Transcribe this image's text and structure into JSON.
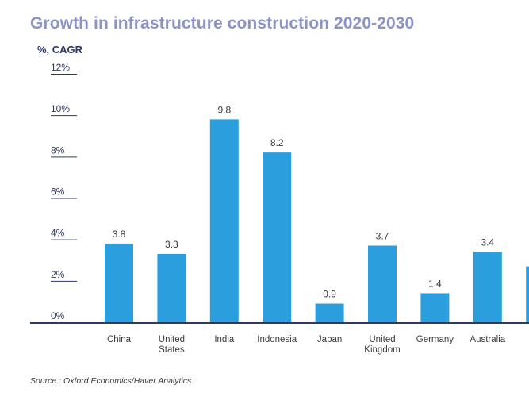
{
  "title": "Growth in infrastructure construction 2020-2030",
  "subtitle": "%, CAGR",
  "source": "Source : Oxford Economics/Haver Analytics",
  "colors": {
    "bar": "#2b9fdd",
    "axis": "#2e3a64",
    "title": "#8b93c8"
  },
  "chart_data": {
    "type": "bar",
    "title": "Growth in infrastructure construction 2020-2030",
    "ylabel": "%, CAGR",
    "ylim": [
      0,
      12
    ],
    "yticks": [
      "0%",
      "2%",
      "4%",
      "6%",
      "8%",
      "10%",
      "12%"
    ],
    "grid": false,
    "categories": [
      "China",
      "United States",
      "India",
      "Indonesia",
      "Japan",
      "United Kingdom",
      "Germany",
      "Australia",
      ""
    ],
    "category_lines": [
      [
        "China"
      ],
      [
        "United",
        "States"
      ],
      [
        "India"
      ],
      [
        "Indonesia"
      ],
      [
        "Japan"
      ],
      [
        "United",
        "Kingdom"
      ],
      [
        "Germany"
      ],
      [
        "Australia"
      ],
      [
        ""
      ]
    ],
    "values": [
      3.8,
      3.3,
      9.8,
      8.2,
      0.9,
      3.7,
      1.4,
      3.4,
      2.7
    ],
    "value_labels": [
      "3.8",
      "3.3",
      "9.8",
      "8.2",
      "0.9",
      "3.7",
      "1.4",
      "3.4",
      ""
    ]
  }
}
